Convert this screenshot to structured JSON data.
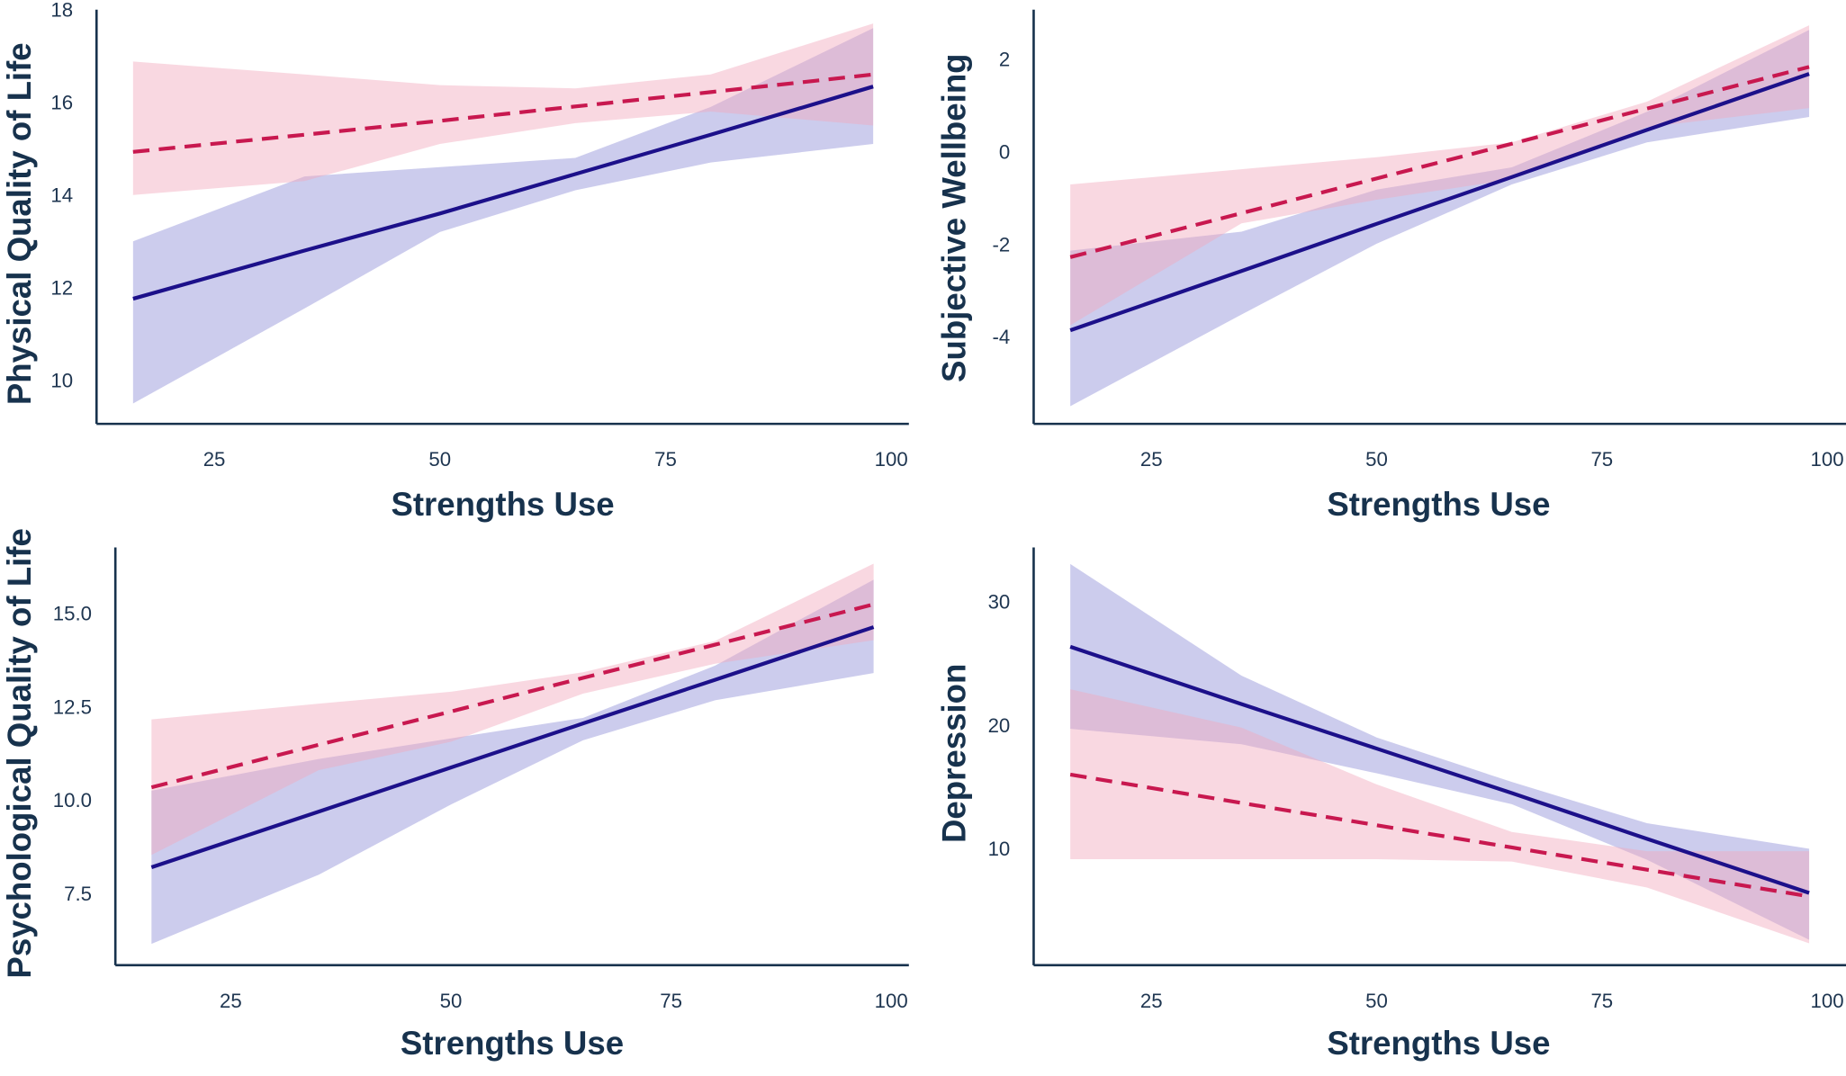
{
  "chart_data": [
    {
      "type": "line",
      "xlabel": "Strengths Use",
      "ylabel": "Physical Quality of Life",
      "xticks": [
        "25",
        "50",
        "75",
        "100"
      ],
      "yticks": [
        "10",
        "12",
        "14",
        "16",
        "18"
      ],
      "grid": false,
      "series": [
        {
          "style": "solid",
          "color": "#1c108a",
          "band_color": "#8f8fd6",
          "x": [
            16,
            35,
            50,
            65,
            80,
            98
          ],
          "fit": [
            11.76,
            12.8,
            13.6,
            14.45,
            15.3,
            16.34
          ],
          "lower": [
            9.5,
            11.55,
            13.2,
            14.1,
            14.7,
            15.1
          ],
          "upper": [
            13.0,
            14.4,
            14.6,
            14.8,
            15.9,
            17.6
          ]
        },
        {
          "style": "dashed",
          "color": "#c8184f",
          "band_color": "#f2a9bc",
          "x": [
            16,
            35,
            50,
            65,
            80,
            98
          ],
          "fit": [
            14.93,
            15.3,
            15.6,
            15.91,
            16.22,
            16.6
          ],
          "lower": [
            14.0,
            14.3,
            15.1,
            15.55,
            15.8,
            15.5
          ],
          "upper": [
            16.88,
            16.6,
            16.37,
            16.3,
            16.6,
            17.7
          ]
        }
      ]
    },
    {
      "type": "line",
      "xlabel": "Strengths Use",
      "ylabel": "Subjective Wellbeing",
      "xticks": [
        "25",
        "50",
        "75",
        "100"
      ],
      "yticks": [
        "-4",
        "-2",
        "0",
        "2"
      ],
      "grid": false,
      "series": [
        {
          "style": "solid",
          "color": "#1c108a",
          "band_color": "#8f8fd6",
          "x": [
            16,
            35,
            50,
            65,
            80,
            98
          ],
          "fit": [
            -3.86,
            -2.58,
            -1.56,
            -0.55,
            0.47,
            1.68
          ],
          "lower": [
            -5.5,
            -3.52,
            -1.99,
            -0.71,
            0.2,
            0.75
          ],
          "upper": [
            -2.14,
            -1.73,
            -0.82,
            -0.34,
            0.86,
            2.63
          ]
        },
        {
          "style": "dashed",
          "color": "#c8184f",
          "band_color": "#f2a9bc",
          "x": [
            16,
            35,
            50,
            65,
            80,
            98
          ],
          "fit": [
            -2.28,
            -1.33,
            -0.58,
            0.17,
            0.93,
            1.83
          ],
          "lower": [
            -3.75,
            -1.55,
            -1.04,
            -0.6,
            0.53,
            0.94
          ],
          "upper": [
            -0.71,
            -0.38,
            -0.12,
            0.2,
            1.08,
            2.73
          ]
        }
      ]
    },
    {
      "type": "line",
      "xlabel": "Strengths Use",
      "ylabel": "Psychological Quality of Life",
      "xticks": [
        "25",
        "50",
        "75",
        "100"
      ],
      "yticks": [
        "7.5",
        "10.0",
        "12.5",
        "15.0"
      ],
      "grid": false,
      "series": [
        {
          "style": "solid",
          "color": "#1c108a",
          "band_color": "#8f8fd6",
          "x": [
            16,
            35,
            50,
            65,
            80,
            98
          ],
          "fit": [
            8.2,
            9.69,
            10.87,
            12.05,
            13.22,
            14.63
          ],
          "lower": [
            6.15,
            8.0,
            9.88,
            11.6,
            12.67,
            13.4
          ],
          "upper": [
            10.25,
            11.1,
            11.65,
            12.2,
            13.6,
            15.9
          ]
        },
        {
          "style": "dashed",
          "color": "#c8184f",
          "band_color": "#f2a9bc",
          "x": [
            16,
            35,
            50,
            65,
            80,
            98
          ],
          "fit": [
            10.34,
            11.48,
            12.37,
            13.27,
            14.16,
            15.24
          ],
          "lower": [
            8.53,
            10.8,
            11.56,
            12.85,
            13.65,
            14.28
          ],
          "upper": [
            12.16,
            12.58,
            12.9,
            13.42,
            14.26,
            16.33
          ]
        }
      ]
    },
    {
      "type": "line",
      "xlabel": "Strengths Use",
      "ylabel": "Depression",
      "xticks": [
        "25",
        "50",
        "75",
        "100"
      ],
      "yticks": [
        "10",
        "20",
        "30"
      ],
      "grid": false,
      "series": [
        {
          "style": "solid",
          "color": "#1c108a",
          "band_color": "#8f8fd6",
          "x": [
            16,
            35,
            50,
            65,
            80,
            98
          ],
          "fit": [
            26.34,
            21.7,
            18.1,
            14.5,
            10.8,
            6.42
          ],
          "lower": [
            19.7,
            18.45,
            16.1,
            13.6,
            9.1,
            2.62
          ],
          "upper": [
            33.04,
            24.0,
            19.0,
            15.4,
            12.06,
            10.0
          ]
        },
        {
          "style": "dashed",
          "color": "#c8184f",
          "band_color": "#f2a9bc",
          "x": [
            16,
            35,
            50,
            65,
            80,
            98
          ],
          "fit": [
            16.0,
            13.7,
            11.9,
            10.1,
            8.3,
            6.14
          ],
          "lower": [
            9.15,
            9.15,
            9.15,
            8.96,
            6.86,
            2.34
          ],
          "upper": [
            22.9,
            19.8,
            15.2,
            11.35,
            9.8,
            9.8
          ]
        }
      ]
    }
  ]
}
